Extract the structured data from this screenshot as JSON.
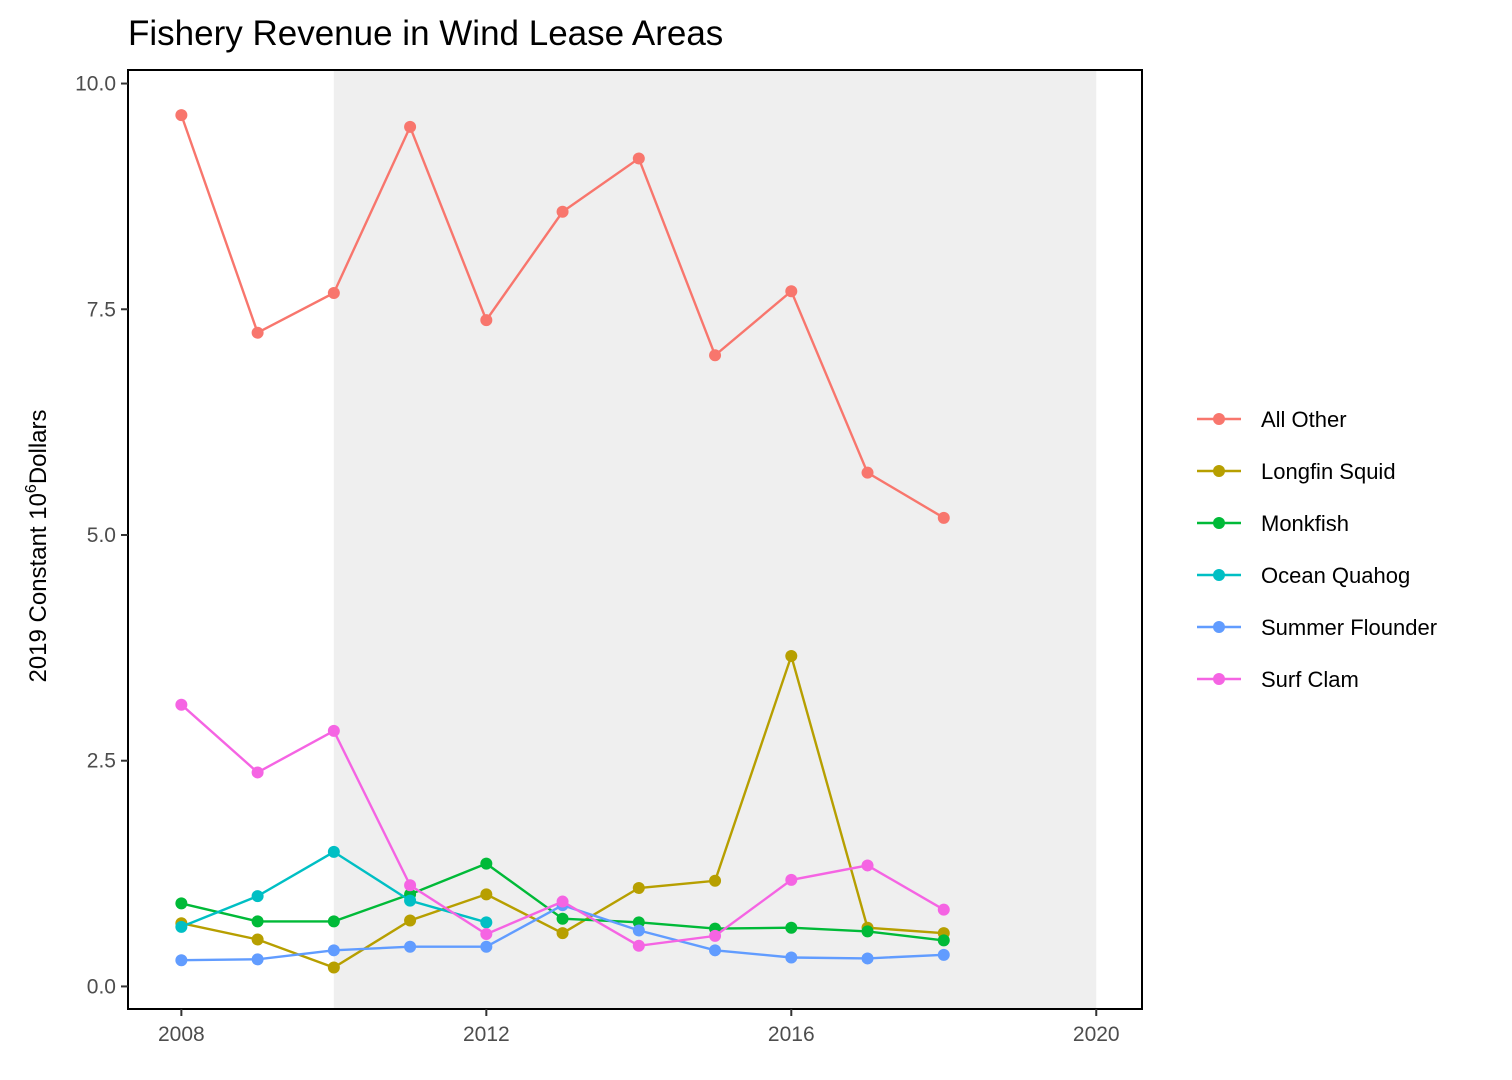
{
  "chart_data": {
    "type": "line",
    "title": "Fishery Revenue in Wind Lease Areas",
    "xlabel": "",
    "ylabel": {
      "base": "2019 Constant 10",
      "superscript": "6",
      "suffix": "Dollars"
    },
    "xlim": [
      2007.3,
      2020.6
    ],
    "ylim": [
      -0.25,
      10.15
    ],
    "x_ticks": [
      2008,
      2012,
      2016,
      2020
    ],
    "y_ticks": [
      0.0,
      2.5,
      5.0,
      7.5,
      10.0
    ],
    "x_tick_labels": [
      "2008",
      "2012",
      "2016",
      "2020"
    ],
    "y_tick_labels": [
      "0.0",
      "2.5",
      "5.0",
      "7.5",
      "10.0"
    ],
    "shaded_region": {
      "x_start": 2010,
      "x_end": 2020,
      "color": "#efefef"
    },
    "grid": false,
    "legend_position": "right",
    "x": [
      2008,
      2009,
      2010,
      2011,
      2012,
      2013,
      2014,
      2015,
      2016,
      2017,
      2018
    ],
    "series": [
      {
        "name": "All Other",
        "color": "#f8766d",
        "values": [
          9.65,
          7.24,
          7.68,
          9.52,
          7.38,
          8.58,
          9.17,
          6.99,
          7.7,
          5.69,
          5.19
        ]
      },
      {
        "name": "Longfin Squid",
        "color": "#b79f00",
        "values": [
          0.7,
          0.52,
          0.21,
          0.73,
          1.02,
          0.59,
          1.09,
          1.17,
          3.66,
          0.65,
          0.59
        ]
      },
      {
        "name": "Monkfish",
        "color": "#00ba38",
        "values": [
          0.92,
          0.72,
          0.72,
          1.02,
          1.36,
          0.75,
          0.71,
          0.64,
          0.65,
          0.61,
          0.51
        ]
      },
      {
        "name": "Ocean Quahog",
        "color": "#00bfc4",
        "values": [
          0.66,
          1.0,
          1.49,
          0.95,
          0.71,
          null,
          null,
          null,
          null,
          null,
          null
        ]
      },
      {
        "name": "Summer Flounder",
        "color": "#619cff",
        "values": [
          0.29,
          0.3,
          0.4,
          0.44,
          0.44,
          0.9,
          0.62,
          0.4,
          0.32,
          0.31,
          0.35
        ]
      },
      {
        "name": "Surf Clam",
        "color": "#f564e3",
        "values": [
          3.12,
          2.37,
          2.83,
          1.12,
          0.58,
          0.94,
          0.45,
          0.56,
          1.18,
          1.34,
          0.85
        ]
      }
    ]
  }
}
